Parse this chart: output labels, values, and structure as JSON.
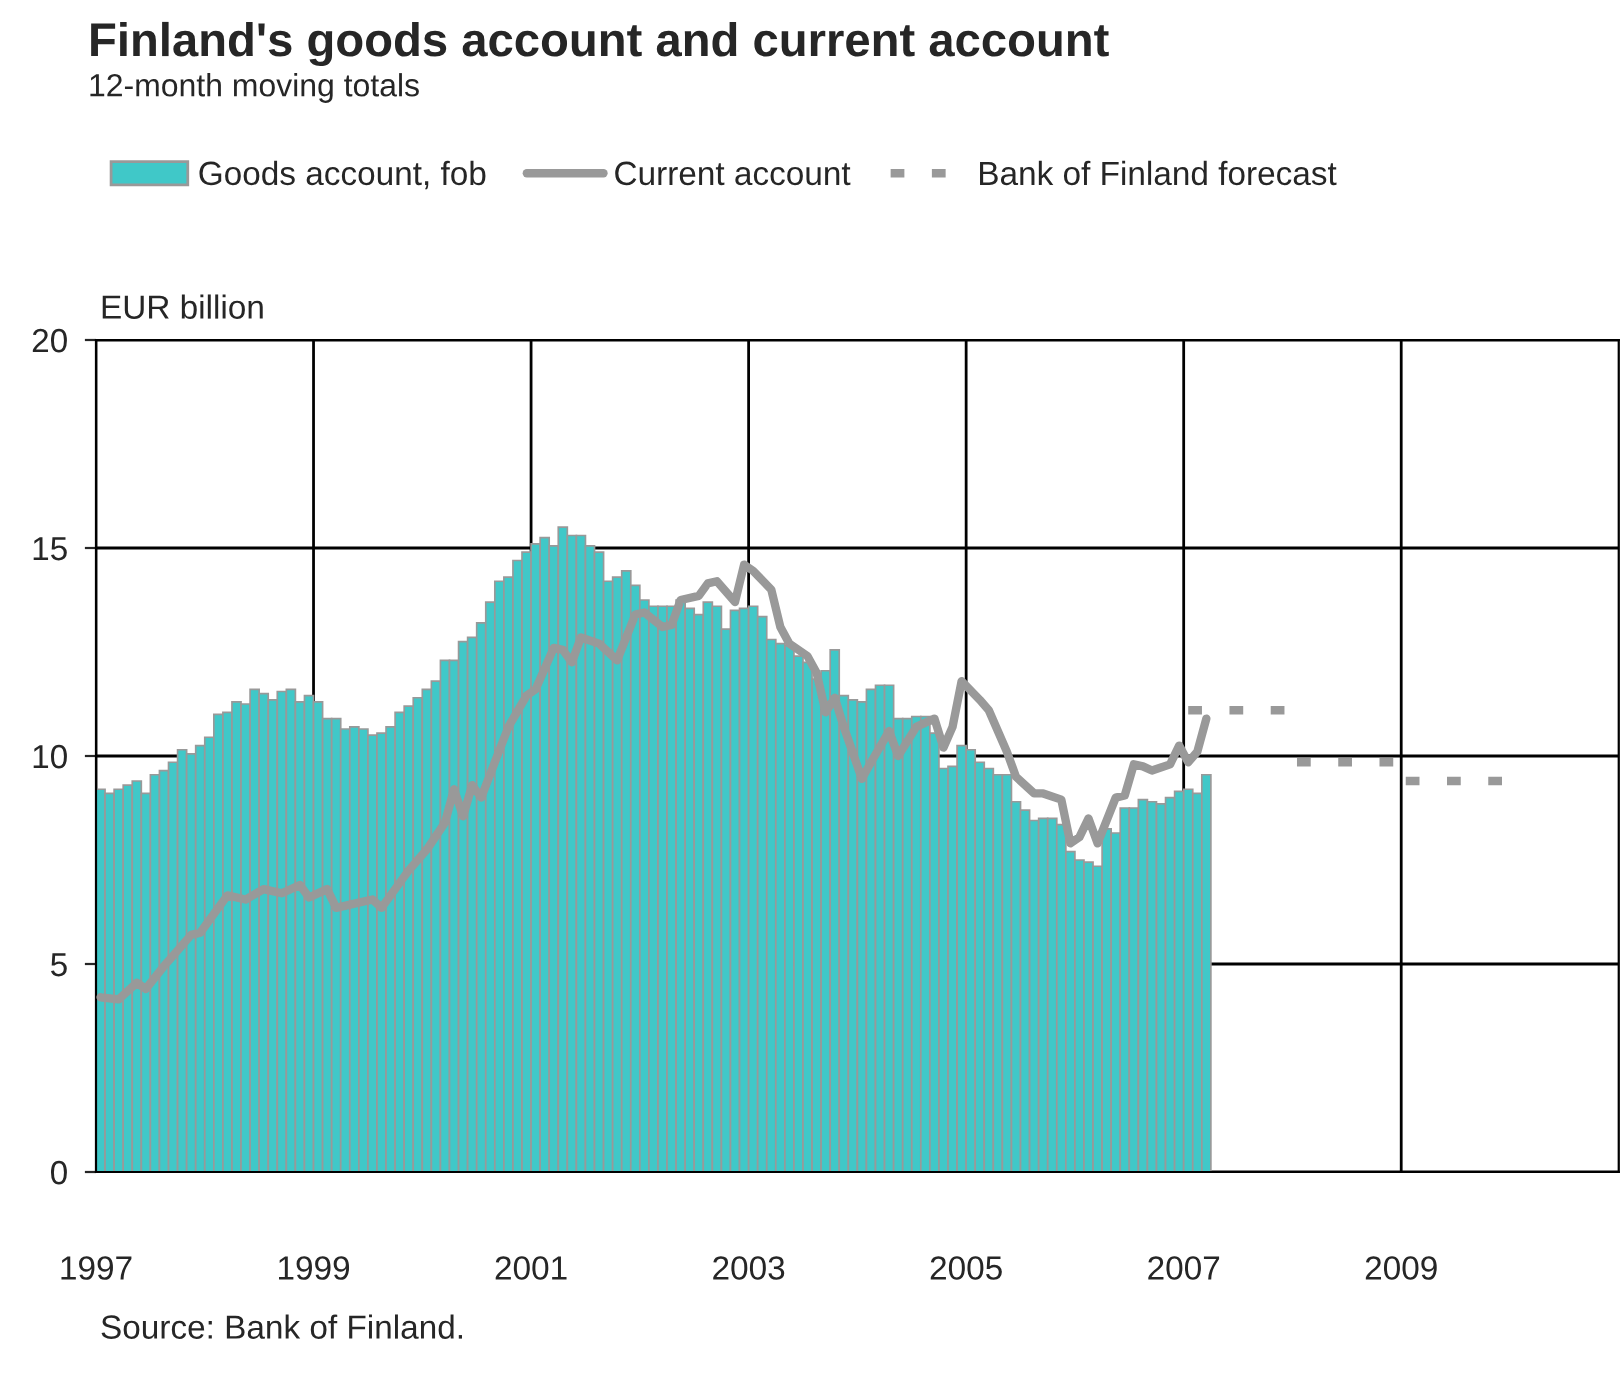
{
  "chart_data": {
    "type": "bar",
    "title": "Finland's goods account and current account",
    "subtitle": "12-month moving totals",
    "ylabel": "EUR billion",
    "x": [
      "1997-01",
      "1997-02",
      "1997-03",
      "1997-04",
      "1997-05",
      "1997-06",
      "1997-07",
      "1997-08",
      "1997-09",
      "1997-10",
      "1997-11",
      "1997-12",
      "1998-01",
      "1998-02",
      "1998-03",
      "1998-04",
      "1998-05",
      "1998-06",
      "1998-07",
      "1998-08",
      "1998-09",
      "1998-10",
      "1998-11",
      "1998-12",
      "1999-01",
      "1999-02",
      "1999-03",
      "1999-04",
      "1999-05",
      "1999-06",
      "1999-07",
      "1999-08",
      "1999-09",
      "1999-10",
      "1999-11",
      "1999-12",
      "2000-01",
      "2000-02",
      "2000-03",
      "2000-04",
      "2000-05",
      "2000-06",
      "2000-07",
      "2000-08",
      "2000-09",
      "2000-10",
      "2000-11",
      "2000-12",
      "2001-01",
      "2001-02",
      "2001-03",
      "2001-04",
      "2001-05",
      "2001-06",
      "2001-07",
      "2001-08",
      "2001-09",
      "2001-10",
      "2001-11",
      "2001-12",
      "2002-01",
      "2002-02",
      "2002-03",
      "2002-04",
      "2002-05",
      "2002-06",
      "2002-07",
      "2002-08",
      "2002-09",
      "2002-10",
      "2002-11",
      "2002-12",
      "2003-01",
      "2003-02",
      "2003-03",
      "2003-04",
      "2003-05",
      "2003-06",
      "2003-07",
      "2003-08",
      "2003-09",
      "2003-10",
      "2003-11",
      "2003-12",
      "2004-01",
      "2004-02",
      "2004-03",
      "2004-04",
      "2004-05",
      "2004-06",
      "2004-07",
      "2004-08",
      "2004-09",
      "2004-10",
      "2004-11",
      "2004-12",
      "2005-01",
      "2005-02",
      "2005-03",
      "2005-04",
      "2005-05",
      "2005-06",
      "2005-07",
      "2005-08",
      "2005-09",
      "2005-10",
      "2005-11",
      "2005-12",
      "2006-01",
      "2006-02",
      "2006-03",
      "2006-04",
      "2006-05",
      "2006-06",
      "2006-07",
      "2006-08",
      "2006-09",
      "2006-10",
      "2006-11",
      "2006-12",
      "2007-01",
      "2007-02",
      "2007-03"
    ],
    "series": [
      {
        "name": "Goods account, fob",
        "color": "#40c8c8",
        "values": [
          9.2,
          9.1,
          9.2,
          9.3,
          9.4,
          9.1,
          9.55,
          9.65,
          9.85,
          10.15,
          10.05,
          10.25,
          10.45,
          11.0,
          11.05,
          11.3,
          11.25,
          11.6,
          11.5,
          11.35,
          11.55,
          11.6,
          11.3,
          11.45,
          11.3,
          10.9,
          10.9,
          10.65,
          10.7,
          10.65,
          10.5,
          10.55,
          10.7,
          11.05,
          11.2,
          11.4,
          11.6,
          11.8,
          12.3,
          12.3,
          12.75,
          12.85,
          13.2,
          13.7,
          14.2,
          14.3,
          14.7,
          14.9,
          15.1,
          15.25,
          15.05,
          15.5,
          15.3,
          15.3,
          15.05,
          14.9,
          14.2,
          14.3,
          14.45,
          14.1,
          13.75,
          13.6,
          13.6,
          13.6,
          13.75,
          13.55,
          13.4,
          13.7,
          13.6,
          13.05,
          13.5,
          13.55,
          13.6,
          13.35,
          12.8,
          12.7,
          12.65,
          12.4,
          12.25,
          11.85,
          12.05,
          12.55,
          11.45,
          11.35,
          11.3,
          11.6,
          11.7,
          11.7,
          10.9,
          10.9,
          10.95,
          10.95,
          10.55,
          9.7,
          9.75,
          10.25,
          10.15,
          9.85,
          9.7,
          9.55,
          9.55,
          8.9,
          8.7,
          8.45,
          8.5,
          8.5,
          8.35,
          7.7,
          7.5,
          7.45,
          7.35,
          8.25,
          8.15,
          8.75,
          8.75,
          8.95,
          8.9,
          8.85,
          9.0,
          9.15,
          9.2,
          9.1,
          9.55
        ]
      },
      {
        "name": "Current account",
        "type": "line",
        "color": "#999999",
        "line_style": "solid",
        "x": [
          "1997-01",
          "1997-03",
          "1997-05",
          "1997-06",
          "1997-08",
          "1997-09",
          "1997-11",
          "1997-12",
          "1998-01",
          "1998-03",
          "1998-05",
          "1998-07",
          "1998-09",
          "1998-11",
          "1998-12",
          "1999-02",
          "1999-03",
          "1999-05",
          "1999-07",
          "1999-08",
          "1999-11",
          "2000-01",
          "2000-03",
          "2000-04",
          "2000-05",
          "2000-06",
          "2000-07",
          "2000-10",
          "2000-12",
          "2001-01",
          "2001-03",
          "2001-04",
          "2001-05",
          "2001-06",
          "2001-08",
          "2001-10",
          "2001-12",
          "2002-01",
          "2002-03",
          "2002-04",
          "2002-05",
          "2002-07",
          "2002-08",
          "2002-09",
          "2002-11",
          "2002-12",
          "2003-01",
          "2003-03",
          "2003-04",
          "2003-05",
          "2003-07",
          "2003-08",
          "2003-09",
          "2003-10",
          "2003-11",
          "2004-01",
          "2004-02",
          "2004-04",
          "2004-05",
          "2004-07",
          "2004-09",
          "2004-10",
          "2004-11",
          "2004-12",
          "2005-02",
          "2005-03",
          "2005-05",
          "2005-06",
          "2005-08",
          "2005-09",
          "2005-11",
          "2005-12",
          "2006-01",
          "2006-02",
          "2006-03",
          "2006-05",
          "2006-06",
          "2006-07",
          "2006-08",
          "2006-09",
          "2006-11",
          "2006-12",
          "2007-01",
          "2007-02",
          "2007-03"
        ],
        "values": [
          4.2,
          4.15,
          4.55,
          4.4,
          4.95,
          5.2,
          5.7,
          5.75,
          6.05,
          6.65,
          6.55,
          6.8,
          6.7,
          6.9,
          6.6,
          6.8,
          6.35,
          6.45,
          6.55,
          6.35,
          7.25,
          7.75,
          8.4,
          9.2,
          8.55,
          9.3,
          9.0,
          10.7,
          11.45,
          11.6,
          12.6,
          12.55,
          12.25,
          12.85,
          12.7,
          12.3,
          13.4,
          13.45,
          13.1,
          13.15,
          13.75,
          13.85,
          14.15,
          14.2,
          13.7,
          14.6,
          14.45,
          14.0,
          13.1,
          12.7,
          12.4,
          12.0,
          11.05,
          11.4,
          10.7,
          9.45,
          9.85,
          10.6,
          10.0,
          10.7,
          10.9,
          10.2,
          10.7,
          11.8,
          11.35,
          11.1,
          10.1,
          9.5,
          9.1,
          9.1,
          8.95,
          7.9,
          8.05,
          8.5,
          7.9,
          9.0,
          9.05,
          9.8,
          9.75,
          9.65,
          9.8,
          10.25,
          9.85,
          10.1,
          10.9
        ]
      },
      {
        "name": "Bank of Finland forecast",
        "type": "line",
        "color": "#999999",
        "line_style": "dashed",
        "x": [
          "2007-01",
          "2007-12"
        ],
        "values": [
          11.1,
          11.1
        ]
      },
      {
        "type": "line",
        "color": "#999999",
        "line_style": "dashed",
        "x": [
          "2008-01",
          "2008-12"
        ],
        "values": [
          9.85,
          9.85
        ]
      },
      {
        "type": "line",
        "color": "#999999",
        "line_style": "dashed",
        "x": [
          "2009-01",
          "2009-12"
        ],
        "values": [
          9.4,
          9.4
        ]
      }
    ],
    "xlim": [
      "1997",
      "2011"
    ],
    "xticks": [
      "1997",
      "1999",
      "2001",
      "2003",
      "2005",
      "2007",
      "2009"
    ],
    "ylim": [
      0,
      20
    ],
    "yticks": [
      0,
      5,
      10,
      15,
      20
    ],
    "grid": true,
    "legend": "top",
    "annotations": [
      "Source: Bank of Finland."
    ]
  }
}
